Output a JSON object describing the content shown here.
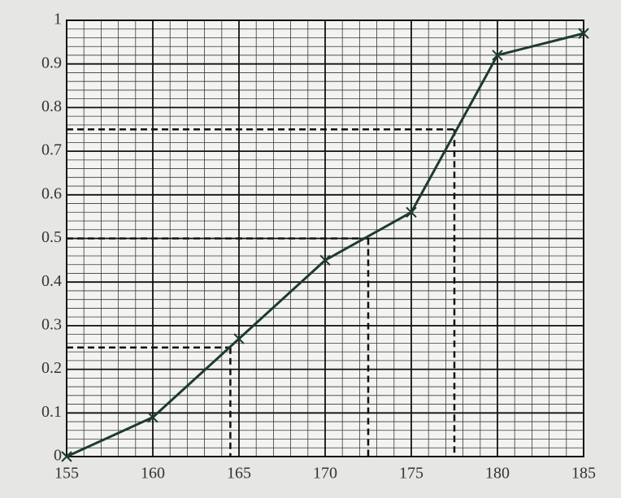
{
  "chart_data": {
    "type": "line",
    "x": [
      155,
      160,
      165,
      170,
      175,
      180,
      185
    ],
    "series": [
      {
        "color": "#1e3b2a",
        "values": [
          0,
          0.09,
          0.27,
          0.45,
          0.56,
          0.92,
          0.97
        ]
      }
    ],
    "marker": "x",
    "xlim": [
      155,
      185
    ],
    "ylim": [
      0,
      1
    ],
    "xticks": [
      155,
      160,
      165,
      170,
      175,
      180,
      185
    ],
    "yticks": [
      0,
      0.1,
      0.2,
      0.3,
      0.4,
      0.5,
      0.6,
      0.7,
      0.8,
      0.9,
      1
    ],
    "grid": true,
    "minor_grid": {
      "x": 1,
      "y": 0.02
    },
    "reference_lines": [
      {
        "y": 0.25,
        "x": 164.5
      },
      {
        "y": 0.5,
        "x": 172.5
      },
      {
        "y": 0.75,
        "x": 177.5
      }
    ]
  }
}
